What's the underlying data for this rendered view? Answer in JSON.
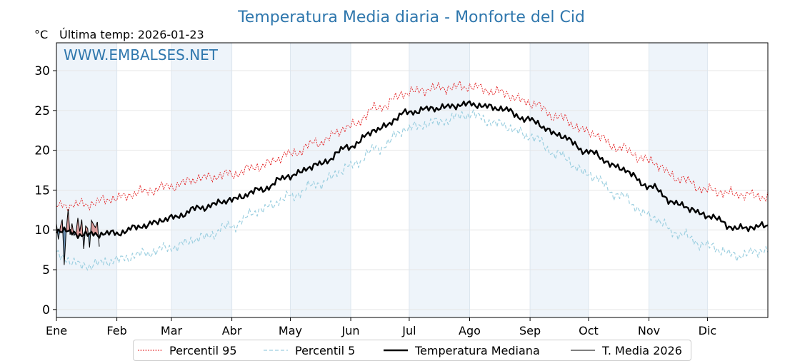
{
  "chart_data": {
    "type": "line",
    "title": "Temperatura Media diaria - Monforte del Cid",
    "unit_label": "°C",
    "last_temp_label": "Última temp: 2026-01-23",
    "watermark": "WWW.EMBALSES.NET",
    "ylim": [
      -1,
      33.5
    ],
    "xlim": [
      1,
      366
    ],
    "y_ticks": [
      0,
      5,
      10,
      15,
      20,
      25,
      30
    ],
    "x_ticks": [
      {
        "label": "Ene",
        "day": 1
      },
      {
        "label": "Feb",
        "day": 32
      },
      {
        "label": "Mar",
        "day": 60
      },
      {
        "label": "Abr",
        "day": 91
      },
      {
        "label": "May",
        "day": 121
      },
      {
        "label": "Jun",
        "day": 152
      },
      {
        "label": "Jul",
        "day": 182
      },
      {
        "label": "Ago",
        "day": 213
      },
      {
        "label": "Sep",
        "day": 244
      },
      {
        "label": "Oct",
        "day": 274
      },
      {
        "label": "Nov",
        "day": 305
      },
      {
        "label": "Dic",
        "day": 335
      }
    ],
    "grid": true,
    "legend_position": "bottom",
    "colors": {
      "p95": "#e31a1c",
      "p5": "#9ccfe0",
      "median": "#000000",
      "current": "#000000",
      "above_fill": "#d9908f",
      "below_fill": "#5a83a8",
      "band": "#eef4fa"
    },
    "series": [
      {
        "name": "Percentil 95",
        "key": "p95",
        "anchors": [
          [
            1,
            13.0
          ],
          [
            15,
            13.2
          ],
          [
            32,
            14.0
          ],
          [
            45,
            14.8
          ],
          [
            60,
            15.5
          ],
          [
            75,
            16.5
          ],
          [
            91,
            17.0
          ],
          [
            105,
            18.0
          ],
          [
            121,
            19.5
          ],
          [
            135,
            21.0
          ],
          [
            152,
            23.0
          ],
          [
            165,
            25.3
          ],
          [
            182,
            27.3
          ],
          [
            195,
            27.8
          ],
          [
            213,
            28.0
          ],
          [
            228,
            27.3
          ],
          [
            244,
            26.0
          ],
          [
            258,
            24.2
          ],
          [
            274,
            22.3
          ],
          [
            290,
            20.3
          ],
          [
            305,
            18.7
          ],
          [
            320,
            16.5
          ],
          [
            335,
            15.0
          ],
          [
            350,
            14.5
          ],
          [
            366,
            14.2
          ]
        ],
        "amplitude": 0.9
      },
      {
        "name": "Percentil 5",
        "key": "p5",
        "anchors": [
          [
            1,
            6.8
          ],
          [
            15,
            5.5
          ],
          [
            32,
            6.2
          ],
          [
            45,
            7.0
          ],
          [
            60,
            7.8
          ],
          [
            75,
            9.0
          ],
          [
            91,
            10.5
          ],
          [
            105,
            12.5
          ],
          [
            121,
            14.2
          ],
          [
            135,
            15.8
          ],
          [
            152,
            18.0
          ],
          [
            165,
            20.2
          ],
          [
            182,
            22.8
          ],
          [
            195,
            23.5
          ],
          [
            213,
            24.5
          ],
          [
            228,
            23.3
          ],
          [
            244,
            21.8
          ],
          [
            258,
            19.5
          ],
          [
            274,
            17.0
          ],
          [
            290,
            14.3
          ],
          [
            305,
            11.8
          ],
          [
            320,
            9.5
          ],
          [
            335,
            8.0
          ],
          [
            350,
            6.8
          ],
          [
            366,
            7.5
          ]
        ],
        "amplitude": 0.9
      },
      {
        "name": "Temperatura Mediana",
        "key": "median",
        "anchors": [
          [
            1,
            10.0
          ],
          [
            15,
            9.4
          ],
          [
            32,
            9.6
          ],
          [
            45,
            10.5
          ],
          [
            60,
            11.5
          ],
          [
            75,
            12.8
          ],
          [
            91,
            13.8
          ],
          [
            105,
            15.0
          ],
          [
            121,
            16.8
          ],
          [
            135,
            18.2
          ],
          [
            152,
            20.5
          ],
          [
            165,
            22.6
          ],
          [
            182,
            24.8
          ],
          [
            195,
            25.3
          ],
          [
            213,
            25.8
          ],
          [
            228,
            25.3
          ],
          [
            244,
            23.8
          ],
          [
            258,
            22.0
          ],
          [
            274,
            19.8
          ],
          [
            290,
            17.8
          ],
          [
            305,
            15.5
          ],
          [
            320,
            13.2
          ],
          [
            335,
            11.8
          ],
          [
            350,
            10.2
          ],
          [
            366,
            10.5
          ]
        ],
        "amplitude": 0.55
      },
      {
        "name": "T. Media 2026",
        "key": "current",
        "days": [
          1,
          2,
          3,
          4,
          5,
          6,
          7,
          8,
          9,
          10,
          11,
          12,
          13,
          14,
          15,
          16,
          17,
          18,
          19,
          20,
          21,
          22,
          23
        ],
        "values": [
          10.8,
          8.8,
          10.4,
          11.3,
          5.6,
          9.8,
          12.6,
          9.4,
          10.8,
          9.3,
          9.6,
          11.5,
          9.8,
          11.3,
          7.6,
          10.5,
          10.2,
          7.8,
          11.2,
          10.7,
          10.3,
          11.0,
          7.9
        ]
      }
    ]
  }
}
